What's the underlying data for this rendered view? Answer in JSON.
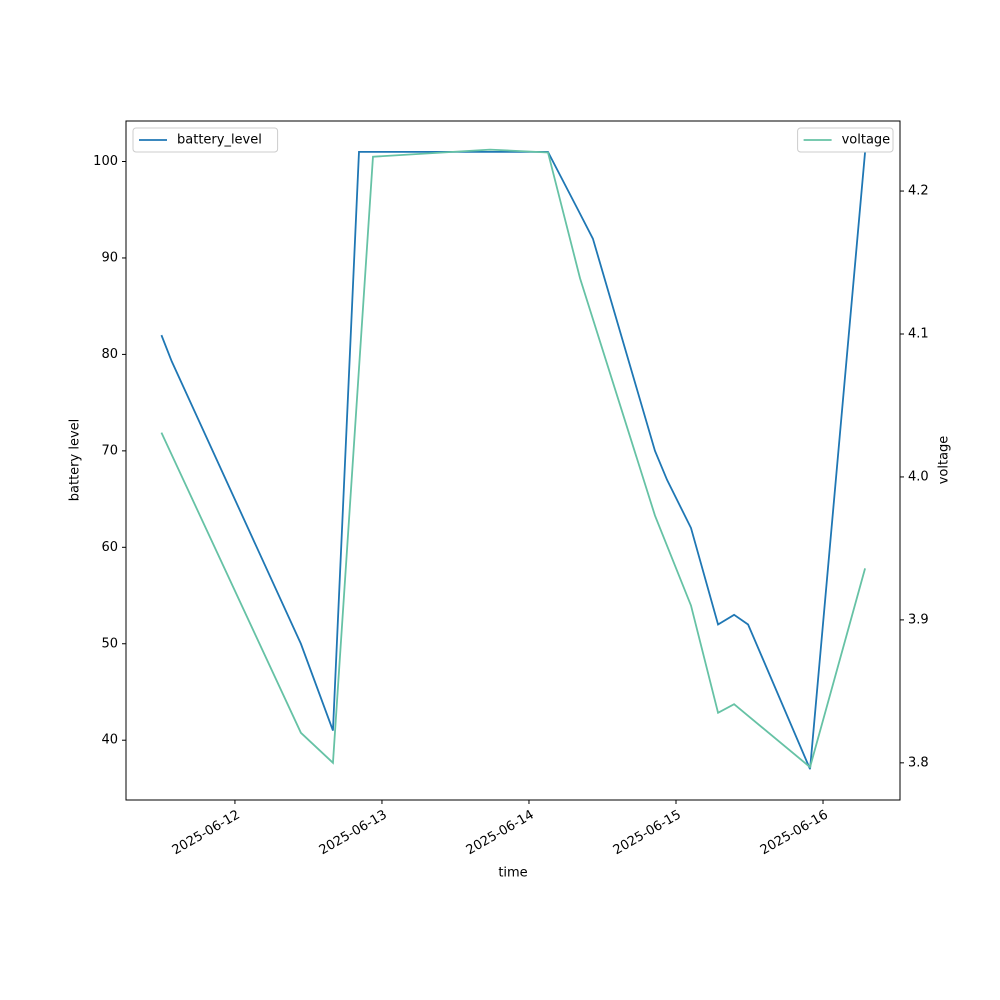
{
  "chart_data": {
    "type": "line",
    "xlabel": "time",
    "ylabel": "battery level",
    "y2label": "voltage",
    "xlim": [
      "2025-06-11T06:13",
      "2025-06-16T12:34"
    ],
    "xticks": [
      "2025-06-12",
      "2025-06-13",
      "2025-06-14",
      "2025-06-15",
      "2025-06-16"
    ],
    "ylim": [
      33.8,
      104.2
    ],
    "yticks": [
      40,
      50,
      60,
      70,
      80,
      90,
      100
    ],
    "y2lim": [
      3.774,
      4.249
    ],
    "y2ticks": [
      3.8,
      3.9,
      {
        "value": 4,
        "label": "4.0"
      },
      4.1,
      4.2
    ],
    "grid": false,
    "series": [
      {
        "name": "battery_level",
        "color": "#1f77b4",
        "legend": "upper left",
        "x": [
          "2025-06-11T12:00",
          "2025-06-11T13:40",
          "2025-06-12T10:46",
          "2025-06-12T16:00",
          "2025-06-12T20:15",
          "2025-06-14T03:06",
          "2025-06-14T08:00",
          "2025-06-14T10:26",
          "2025-06-14T20:34",
          "2025-06-14T22:32",
          "2025-06-15T02:27",
          "2025-06-15T06:52",
          "2025-06-15T09:29",
          "2025-06-15T11:46",
          "2025-06-15T21:53",
          "2025-06-16T06:52"
        ],
        "values": [
          82,
          79.3,
          50,
          41,
          101,
          101,
          95,
          92,
          70,
          67,
          62,
          52,
          53,
          52,
          37,
          101
        ]
      },
      {
        "name": "voltage",
        "color": "#66c2a5",
        "axis": "y2",
        "legend": "upper right",
        "x": [
          "2025-06-11T12:00",
          "2025-06-12T10:46",
          "2025-06-12T16:00",
          "2025-06-12T22:32",
          "2025-06-13T17:38",
          "2025-06-14T03:06",
          "2025-06-14T08:20",
          "2025-06-14T20:34",
          "2025-06-15T02:27",
          "2025-06-15T06:52",
          "2025-06-15T09:29",
          "2025-06-15T21:53",
          "2025-06-16T06:52"
        ],
        "values": [
          4.031,
          3.821,
          3.8,
          4.224,
          4.229,
          4.227,
          4.139,
          3.973,
          3.91,
          3.835,
          3.841,
          3.797,
          3.936
        ]
      }
    ]
  }
}
